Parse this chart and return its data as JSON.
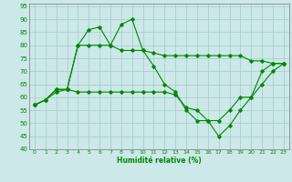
{
  "xlabel": "Humidité relative (%)",
  "background_color": "#cce8e8",
  "grid_color": "#aacece",
  "line_color": "#008800",
  "xlim": [
    -0.5,
    23.5
  ],
  "ylim": [
    40,
    96
  ],
  "xticks": [
    0,
    1,
    2,
    3,
    4,
    5,
    6,
    7,
    8,
    9,
    10,
    11,
    12,
    13,
    14,
    15,
    16,
    17,
    18,
    19,
    20,
    21,
    22,
    23
  ],
  "yticks": [
    40,
    45,
    50,
    55,
    60,
    65,
    70,
    75,
    80,
    85,
    90,
    95
  ],
  "series": [
    {
      "x": [
        0,
        1,
        2,
        3,
        4,
        5,
        6,
        7,
        8,
        9,
        10,
        11,
        12,
        13,
        14,
        15,
        16,
        17,
        18,
        19,
        20,
        21,
        22,
        23
      ],
      "y": [
        57,
        59,
        63,
        63,
        80,
        86,
        87,
        80,
        88,
        90,
        78,
        72,
        65,
        62,
        55,
        51,
        51,
        45,
        49,
        55,
        60,
        70,
        73,
        73
      ]
    },
    {
      "x": [
        0,
        1,
        2,
        3,
        4,
        5,
        6,
        7,
        8,
        9,
        10,
        11,
        12,
        13,
        14,
        15,
        16,
        17,
        18,
        19,
        20,
        21,
        22,
        23
      ],
      "y": [
        57,
        59,
        63,
        63,
        80,
        80,
        80,
        80,
        78,
        78,
        78,
        77,
        76,
        76,
        76,
        76,
        76,
        76,
        76,
        76,
        74,
        74,
        73,
        73
      ]
    },
    {
      "x": [
        0,
        1,
        2,
        3,
        4,
        5,
        6,
        7,
        8,
        9,
        10,
        11,
        12,
        13,
        14,
        15,
        16,
        17,
        18,
        19,
        20,
        21,
        22,
        23
      ],
      "y": [
        57,
        59,
        62,
        63,
        62,
        62,
        62,
        62,
        62,
        62,
        62,
        62,
        62,
        61,
        56,
        55,
        51,
        51,
        55,
        60,
        60,
        65,
        70,
        73
      ]
    }
  ]
}
